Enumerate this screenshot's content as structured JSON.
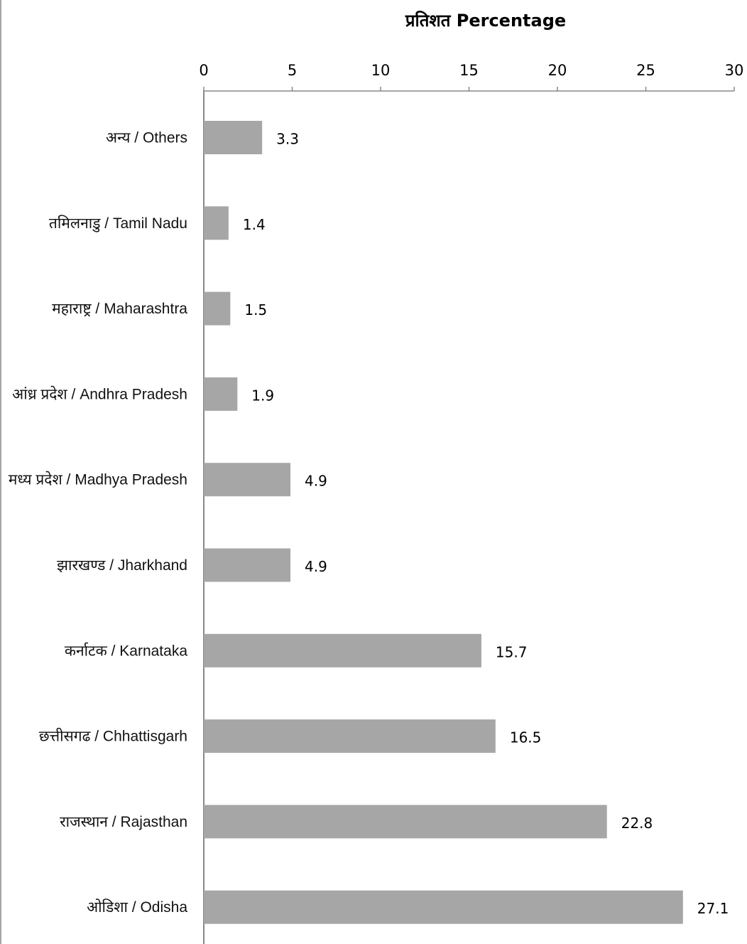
{
  "chart_data": {
    "type": "bar",
    "orientation": "horizontal",
    "title": "",
    "xlabel": "प्रतिशत Percentage",
    "ylabel": "",
    "xlim": [
      0,
      30
    ],
    "x_ticks": [
      0,
      5,
      10,
      15,
      20,
      25,
      30
    ],
    "x_axis_position": "top",
    "grid": false,
    "bar_color": "#a6a6a6",
    "categories": [
      "अन्य / Others",
      "तमिलनाडु / Tamil Nadu",
      "महाराष्ट्र / Maharashtra",
      "आंध्र प्रदेश / Andhra Pradesh",
      "मध्य प्रदेश  / Madhya Pradesh",
      "झारखण्ड / Jharkhand",
      "कर्नाटक / Karnataka",
      "छत्तीसगढ / Chhattisgarh",
      "राजस्थान / Rajasthan",
      "ओडिशा / Odisha"
    ],
    "values": [
      3.3,
      1.4,
      1.5,
      1.9,
      4.9,
      4.9,
      15.7,
      16.5,
      22.8,
      27.1
    ],
    "data_labels": [
      "3.3",
      "1.4",
      "1.5",
      "1.9",
      "4.9",
      "4.9",
      "15.7",
      "16.5",
      "22.8",
      "27.1"
    ]
  }
}
